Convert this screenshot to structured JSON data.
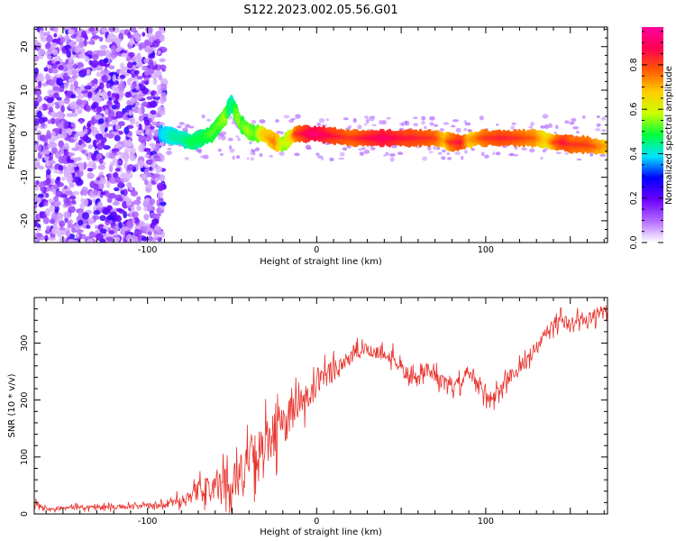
{
  "title": "S122.2023.002.05.56.G01",
  "chart_data": [
    {
      "type": "heatmap",
      "xlabel": "Height of straight line (km)",
      "ylabel": "Frequency (Hz)",
      "xlim": [
        -167,
        172
      ],
      "ylim": [
        -25,
        24.5
      ],
      "x_ticks": [
        -100,
        0,
        100
      ],
      "y_ticks": [
        -20,
        -10,
        0,
        10,
        20
      ],
      "colorbar": {
        "label": "Normalized spectral amplitude",
        "range": [
          0,
          0.97
        ],
        "ticks": [
          0.0,
          0.2,
          0.4,
          0.6,
          0.8
        ],
        "colors": [
          "#ffffff",
          "#b36bff",
          "#6a00ff",
          "#0000ff",
          "#00e5ff",
          "#00ff3c",
          "#ccff00",
          "#ffcc00",
          "#ff5a00",
          "#ff0050",
          "#ff00a0"
        ]
      },
      "noise_region_x": [
        -167,
        -90
      ],
      "ridge": {
        "x": [
          -92,
          -86,
          -80,
          -74,
          -68,
          -62,
          -58,
          -54,
          -52,
          -50,
          -48,
          -46,
          -44,
          -40,
          -36,
          -32,
          -28,
          -24,
          -20,
          -16,
          -12,
          -8,
          -4,
          0,
          10,
          20,
          30,
          40,
          50,
          60,
          70,
          76,
          80,
          86,
          90,
          96,
          100,
          110,
          120,
          130,
          136,
          140,
          146,
          152,
          160,
          166,
          172
        ],
        "y": [
          0,
          -0.5,
          -1,
          -2,
          -1,
          0,
          2,
          4,
          6,
          7,
          5,
          3,
          2,
          0.5,
          0,
          0,
          -1,
          -2,
          -2.5,
          -1,
          0,
          0,
          0,
          0,
          -0.5,
          -1,
          -1,
          -1,
          -1,
          -1,
          -1,
          -1.5,
          -2,
          -2,
          -1.5,
          -1,
          -1,
          -1,
          -1,
          -1,
          -1.5,
          -2,
          -2,
          -2.5,
          -2.5,
          -3,
          -3
        ],
        "amplitude": [
          0.4,
          0.45,
          0.45,
          0.5,
          0.5,
          0.55,
          0.55,
          0.6,
          0.5,
          0.45,
          0.55,
          0.6,
          0.55,
          0.6,
          0.55,
          0.7,
          0.75,
          0.8,
          0.6,
          0.65,
          0.85,
          0.9,
          0.95,
          0.97,
          0.9,
          0.85,
          0.9,
          0.95,
          0.9,
          0.88,
          0.85,
          0.75,
          0.85,
          0.9,
          0.75,
          0.8,
          0.85,
          0.88,
          0.85,
          0.8,
          0.7,
          0.8,
          0.9,
          0.85,
          0.85,
          0.8,
          0.75
        ]
      }
    },
    {
      "type": "line",
      "xlabel": "Height of straight line (km)",
      "ylabel": "SNR (10 * v/v)",
      "xlim": [
        -167,
        172
      ],
      "ylim": [
        0,
        380
      ],
      "x_ticks": [
        -100,
        0,
        100
      ],
      "y_ticks": [
        0,
        100,
        200,
        300
      ],
      "color": "#e8322c",
      "series": [
        {
          "x": [
            -167,
            -160,
            -150,
            -140,
            -130,
            -120,
            -110,
            -100,
            -90,
            -80,
            -70,
            -60,
            -50,
            -40,
            -30,
            -25,
            -20,
            -15,
            -10,
            -5,
            0,
            5,
            10,
            15,
            20,
            25,
            30,
            35,
            40,
            45,
            50,
            55,
            60,
            65,
            70,
            75,
            80,
            85,
            90,
            95,
            100,
            105,
            110,
            115,
            120,
            125,
            130,
            135,
            140,
            145,
            150,
            155,
            160,
            165,
            172
          ],
          "y": [
            20,
            10,
            10,
            12,
            12,
            12,
            13,
            14,
            15,
            25,
            40,
            45,
            60,
            90,
            120,
            140,
            160,
            175,
            190,
            205,
            220,
            240,
            255,
            265,
            275,
            283,
            290,
            285,
            280,
            275,
            255,
            240,
            235,
            255,
            245,
            230,
            220,
            230,
            250,
            225,
            210,
            205,
            225,
            245,
            255,
            275,
            290,
            315,
            330,
            340,
            330,
            345,
            340,
            350,
            355
          ],
          "noise": [
            8,
            5,
            5,
            6,
            6,
            6,
            6,
            7,
            8,
            15,
            25,
            35,
            45,
            55,
            60,
            60,
            55,
            50,
            45,
            40,
            35,
            30,
            30,
            25,
            22,
            20,
            18,
            18,
            18,
            18,
            18,
            18,
            18,
            18,
            18,
            18,
            18,
            18,
            18,
            18,
            18,
            18,
            18,
            18,
            18,
            18,
            18,
            18,
            18,
            18,
            18,
            18,
            18,
            18,
            18
          ]
        }
      ]
    }
  ]
}
